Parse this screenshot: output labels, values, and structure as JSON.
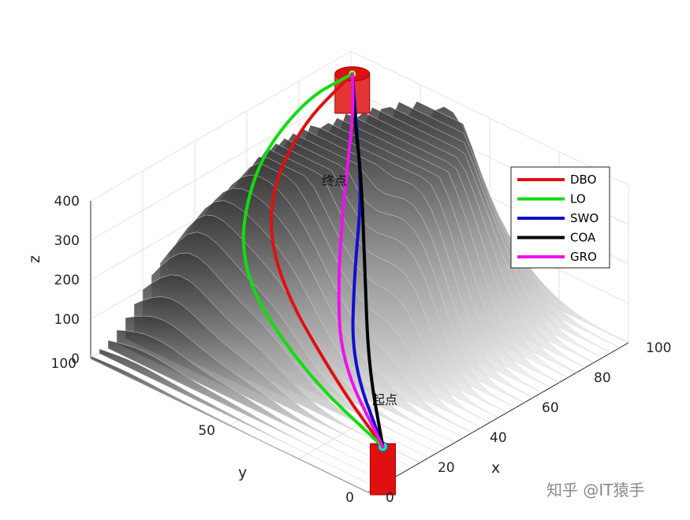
{
  "chart_data": {
    "type": "line",
    "title": "",
    "xlabel": "x",
    "ylabel": "y",
    "zlabel": "z",
    "xlim": [
      0,
      100
    ],
    "ylim": [
      0,
      100
    ],
    "zlim": [
      0,
      400
    ],
    "x_ticks": [
      "0",
      "20",
      "40",
      "60",
      "80",
      "100"
    ],
    "y_ticks": [
      "0",
      "50",
      "100"
    ],
    "z_ticks": [
      "0",
      "100",
      "200",
      "300",
      "400"
    ],
    "grid": true,
    "legend_position": "top-right",
    "terrain": "grayscale mountain surface",
    "start_label": "起点",
    "end_label": "终点",
    "series": [
      {
        "name": "DBO",
        "color": "#e01010",
        "path": [
          [
            12,
            6,
            50
          ],
          [
            20,
            30,
            100
          ],
          [
            40,
            70,
            150
          ],
          [
            55,
            88,
            230
          ],
          [
            75,
            95,
            320
          ],
          [
            92,
            92,
            400
          ]
        ]
      },
      {
        "name": "LO",
        "color": "#11dd11",
        "path": [
          [
            12,
            6,
            50
          ],
          [
            18,
            40,
            100
          ],
          [
            35,
            80,
            160
          ],
          [
            60,
            98,
            260
          ],
          [
            80,
            98,
            360
          ],
          [
            92,
            92,
            400
          ]
        ]
      },
      {
        "name": "SWO",
        "color": "#1010cc",
        "path": [
          [
            12,
            6,
            50
          ],
          [
            30,
            34,
            100
          ],
          [
            50,
            52,
            180
          ],
          [
            70,
            68,
            260
          ],
          [
            85,
            84,
            330
          ],
          [
            92,
            92,
            400
          ]
        ]
      },
      {
        "name": "COA",
        "color": "#000000",
        "path": [
          [
            12,
            6,
            50
          ],
          [
            30,
            28,
            110
          ],
          [
            52,
            50,
            200
          ],
          [
            72,
            70,
            290
          ],
          [
            86,
            86,
            360
          ],
          [
            92,
            92,
            400
          ]
        ]
      },
      {
        "name": "GRO",
        "color": "#ee11ee",
        "path": [
          [
            12,
            6,
            50
          ],
          [
            28,
            36,
            100
          ],
          [
            48,
            56,
            170
          ],
          [
            70,
            74,
            260
          ],
          [
            86,
            86,
            340
          ],
          [
            92,
            92,
            400
          ]
        ]
      }
    ],
    "watermark": "知乎 @IT猿手"
  }
}
